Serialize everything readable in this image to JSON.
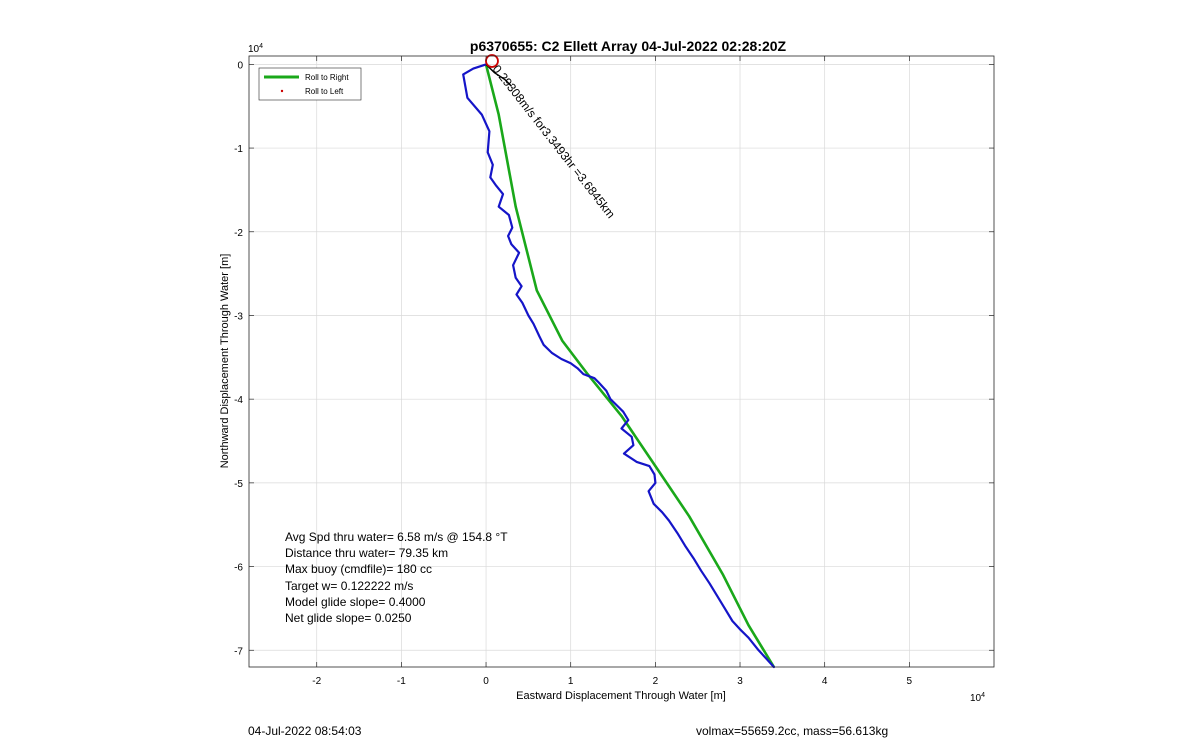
{
  "chart_data": {
    "type": "line",
    "title": "p6370655: C2 Ellett Array 04-Jul-2022 02:28:20Z",
    "xlabel": "Eastward Displacement Through Water [m]",
    "ylabel": "Northward Displacement Through Water [m]",
    "x_exponent": "×10^4",
    "y_exponent": "×10^4",
    "x_exponent_label": "10",
    "x_exponent_power": "4",
    "y_exponent_label": "10",
    "y_exponent_power": "4",
    "xlim": [
      -28000,
      60000
    ],
    "ylim": [
      -72000,
      1000
    ],
    "x_ticks": [
      -20000,
      -10000,
      0,
      10000,
      20000,
      30000,
      40000,
      50000
    ],
    "x_tick_labels": [
      "-2",
      "-1",
      "0",
      "1",
      "2",
      "3",
      "4",
      "5"
    ],
    "y_ticks": [
      0,
      -10000,
      -20000,
      -30000,
      -40000,
      -50000,
      -60000,
      -70000
    ],
    "y_tick_labels": [
      "0",
      "-1",
      "-2",
      "-3",
      "-4",
      "-5",
      "-6",
      "-7"
    ],
    "grid": true,
    "legend_position": "top-left",
    "series": [
      {
        "name": "Roll to Right",
        "color": "#1aa81a",
        "style": "line",
        "x": [
          0,
          1500,
          3500,
          6000,
          9000,
          12000,
          16000,
          20000,
          24000,
          28000,
          31000,
          34000
        ],
        "y": [
          0,
          -6000,
          -17000,
          -27000,
          -33000,
          -37000,
          -42000,
          -48000,
          -54000,
          -61000,
          -67000,
          -72000
        ]
      },
      {
        "name": "Roll to Left",
        "color": "#cc0000",
        "style": "dots",
        "x": [],
        "y": []
      },
      {
        "color": "#1515c8",
        "style": "line",
        "x": [
          0,
          -1500,
          -2700,
          -2200,
          -500,
          400,
          200,
          800,
          500,
          1200,
          2000,
          1500,
          2700,
          3100,
          2600,
          3000,
          3900,
          3200,
          3500,
          4200,
          3600,
          4300,
          5000,
          5600,
          6300,
          6800,
          7800,
          8900,
          10000,
          10800,
          11500,
          12800,
          13300,
          14200,
          14700,
          15700,
          16200,
          16800,
          16000,
          17200,
          17400,
          16300,
          17800,
          19300,
          19900,
          20000,
          19200,
          19800,
          20800,
          21600,
          22600,
          23500,
          24500,
          25400,
          26400,
          27300,
          28200,
          29100,
          30000,
          31000,
          32200,
          33100,
          34000
        ],
        "y": [
          0,
          -500,
          -1200,
          -4000,
          -6000,
          -8000,
          -10500,
          -12000,
          -13500,
          -14500,
          -15500,
          -17000,
          -18000,
          -19500,
          -20500,
          -21500,
          -22500,
          -24000,
          -25500,
          -26500,
          -27500,
          -28500,
          -30000,
          -31000,
          -32500,
          -33500,
          -34500,
          -35200,
          -35700,
          -36300,
          -37000,
          -37500,
          -38000,
          -39000,
          -40000,
          -41000,
          -41500,
          -42500,
          -43500,
          -44500,
          -45500,
          -46500,
          -47500,
          -48000,
          -49000,
          -50000,
          -51000,
          -52500,
          -53500,
          -54500,
          -56000,
          -57500,
          -59000,
          -60500,
          -62000,
          -63500,
          -65000,
          -66500,
          -67500,
          -68500,
          -70000,
          -71000,
          -72000
        ]
      }
    ],
    "start_marker": {
      "x": 700,
      "y": 400
    },
    "current_vector": {
      "label": "0.29308m/s for3.3493hr =3.6845km",
      "x": [
        0,
        1000,
        2200,
        3000
      ],
      "y": [
        0,
        -1000,
        -1800,
        -2600
      ]
    },
    "stats": [
      "Avg Spd thru water=  6.58 m/s @ 154.8 °T",
      "Distance thru water= 79.35 km",
      "Max buoy (cmdfile)= 180 cc",
      "Target w= 0.122222 m/s",
      "Model glide slope= 0.4000",
      "Net glide slope= 0.0250"
    ]
  },
  "footer": {
    "timestamp": "04-Jul-2022 08:54:03",
    "summary": "volmax=55659.2cc, mass=56.613kg"
  }
}
